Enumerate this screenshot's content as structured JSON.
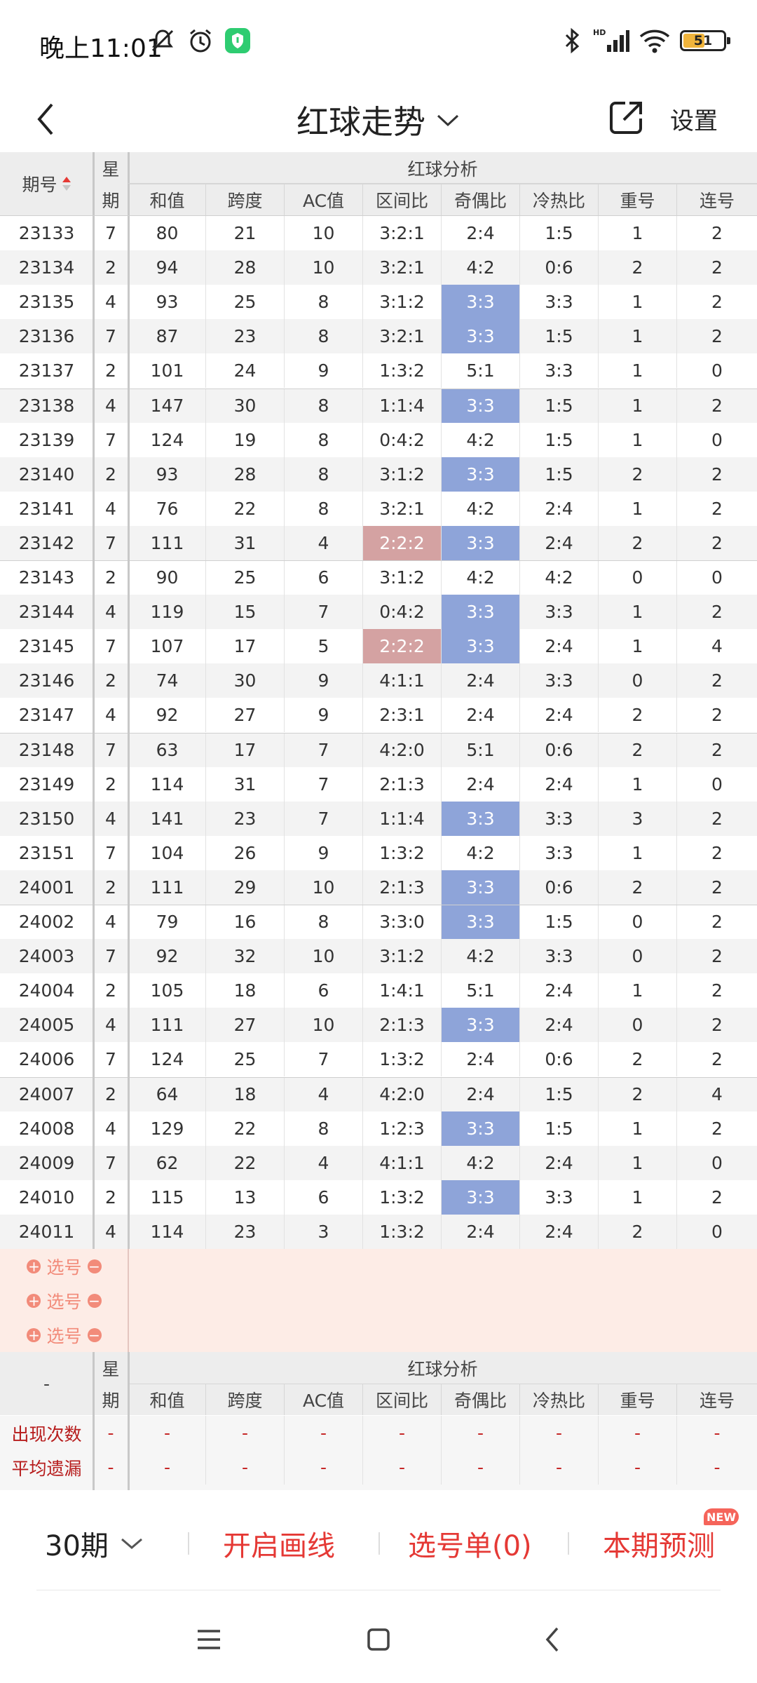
{
  "status": {
    "time": "晚上11:01",
    "battery": "51"
  },
  "nav": {
    "title": "红球走势",
    "settings": "设置"
  },
  "table": {
    "header": {
      "issue": "期号",
      "week_top": "星",
      "week_bottom": "期",
      "analysis": "红球分析",
      "cols": [
        "和值",
        "跨度",
        "AC值",
        "区间比",
        "奇偶比",
        "冷热比",
        "重号",
        "连号"
      ]
    },
    "rows": [
      {
        "issue": "23133",
        "week": "7",
        "vals": [
          "80",
          "21",
          "10",
          "3:2:1",
          "2:4",
          "1:5",
          "1",
          "2"
        ]
      },
      {
        "issue": "23134",
        "week": "2",
        "vals": [
          "94",
          "28",
          "10",
          "3:2:1",
          "4:2",
          "0:6",
          "2",
          "2"
        ]
      },
      {
        "issue": "23135",
        "week": "4",
        "vals": [
          "93",
          "25",
          "8",
          "3:1:2",
          "3:3",
          "3:3",
          "1",
          "2"
        ]
      },
      {
        "issue": "23136",
        "week": "7",
        "vals": [
          "87",
          "23",
          "8",
          "3:2:1",
          "3:3",
          "1:5",
          "1",
          "2"
        ]
      },
      {
        "issue": "23137",
        "week": "2",
        "vals": [
          "101",
          "24",
          "9",
          "1:3:2",
          "5:1",
          "3:3",
          "1",
          "0"
        ]
      },
      {
        "issue": "23138",
        "week": "4",
        "vals": [
          "147",
          "30",
          "8",
          "1:1:4",
          "3:3",
          "1:5",
          "1",
          "2"
        ]
      },
      {
        "issue": "23139",
        "week": "7",
        "vals": [
          "124",
          "19",
          "8",
          "0:4:2",
          "4:2",
          "1:5",
          "1",
          "0"
        ]
      },
      {
        "issue": "23140",
        "week": "2",
        "vals": [
          "93",
          "28",
          "8",
          "3:1:2",
          "3:3",
          "1:5",
          "2",
          "2"
        ]
      },
      {
        "issue": "23141",
        "week": "4",
        "vals": [
          "76",
          "22",
          "8",
          "3:2:1",
          "4:2",
          "2:4",
          "1",
          "2"
        ]
      },
      {
        "issue": "23142",
        "week": "7",
        "vals": [
          "111",
          "31",
          "4",
          "2:2:2",
          "3:3",
          "2:4",
          "2",
          "2"
        ]
      },
      {
        "issue": "23143",
        "week": "2",
        "vals": [
          "90",
          "25",
          "6",
          "3:1:2",
          "4:2",
          "4:2",
          "0",
          "0"
        ]
      },
      {
        "issue": "23144",
        "week": "4",
        "vals": [
          "119",
          "15",
          "7",
          "0:4:2",
          "3:3",
          "3:3",
          "1",
          "2"
        ]
      },
      {
        "issue": "23145",
        "week": "7",
        "vals": [
          "107",
          "17",
          "5",
          "2:2:2",
          "3:3",
          "2:4",
          "1",
          "4"
        ]
      },
      {
        "issue": "23146",
        "week": "2",
        "vals": [
          "74",
          "30",
          "9",
          "4:1:1",
          "2:4",
          "3:3",
          "0",
          "2"
        ]
      },
      {
        "issue": "23147",
        "week": "4",
        "vals": [
          "92",
          "27",
          "9",
          "2:3:1",
          "2:4",
          "2:4",
          "2",
          "2"
        ]
      },
      {
        "issue": "23148",
        "week": "7",
        "vals": [
          "63",
          "17",
          "7",
          "4:2:0",
          "5:1",
          "0:6",
          "2",
          "2"
        ]
      },
      {
        "issue": "23149",
        "week": "2",
        "vals": [
          "114",
          "31",
          "7",
          "2:1:3",
          "2:4",
          "2:4",
          "1",
          "0"
        ]
      },
      {
        "issue": "23150",
        "week": "4",
        "vals": [
          "141",
          "23",
          "7",
          "1:1:4",
          "3:3",
          "3:3",
          "3",
          "2"
        ]
      },
      {
        "issue": "23151",
        "week": "7",
        "vals": [
          "104",
          "26",
          "9",
          "1:3:2",
          "4:2",
          "3:3",
          "1",
          "2"
        ]
      },
      {
        "issue": "24001",
        "week": "2",
        "vals": [
          "111",
          "29",
          "10",
          "2:1:3",
          "3:3",
          "0:6",
          "2",
          "2"
        ]
      },
      {
        "issue": "24002",
        "week": "4",
        "vals": [
          "79",
          "16",
          "8",
          "3:3:0",
          "3:3",
          "1:5",
          "0",
          "2"
        ]
      },
      {
        "issue": "24003",
        "week": "7",
        "vals": [
          "92",
          "32",
          "10",
          "3:1:2",
          "4:2",
          "3:3",
          "0",
          "2"
        ]
      },
      {
        "issue": "24004",
        "week": "2",
        "vals": [
          "105",
          "18",
          "6",
          "1:4:1",
          "5:1",
          "2:4",
          "1",
          "2"
        ]
      },
      {
        "issue": "24005",
        "week": "4",
        "vals": [
          "111",
          "27",
          "10",
          "2:1:3",
          "3:3",
          "2:4",
          "0",
          "2"
        ]
      },
      {
        "issue": "24006",
        "week": "7",
        "vals": [
          "124",
          "25",
          "7",
          "1:3:2",
          "2:4",
          "0:6",
          "2",
          "2"
        ]
      },
      {
        "issue": "24007",
        "week": "2",
        "vals": [
          "64",
          "18",
          "4",
          "4:2:0",
          "2:4",
          "1:5",
          "2",
          "4"
        ]
      },
      {
        "issue": "24008",
        "week": "4",
        "vals": [
          "129",
          "22",
          "8",
          "1:2:3",
          "3:3",
          "1:5",
          "1",
          "2"
        ]
      },
      {
        "issue": "24009",
        "week": "7",
        "vals": [
          "62",
          "22",
          "4",
          "4:1:1",
          "4:2",
          "2:4",
          "1",
          "0"
        ]
      },
      {
        "issue": "24010",
        "week": "2",
        "vals": [
          "115",
          "13",
          "6",
          "1:3:2",
          "3:3",
          "3:3",
          "1",
          "2"
        ]
      },
      {
        "issue": "24011",
        "week": "4",
        "vals": [
          "114",
          "23",
          "3",
          "1:3:2",
          "2:4",
          "2:4",
          "2",
          "0"
        ]
      }
    ],
    "pick_label": "选号",
    "pick_count": 3,
    "footer_header_issue": "-",
    "stats": [
      {
        "label": "出现次数",
        "dash": "-"
      },
      {
        "label": "平均遗漏",
        "dash": "-"
      }
    ]
  },
  "bottom": {
    "period": "30期",
    "draw_lines": "开启画线",
    "pick_list": "选号单(0)",
    "predict": "本期预测",
    "new_badge": "NEW"
  },
  "colors": {
    "blue": "#8ea4d9",
    "red": "#d4a2a2",
    "accent": "#e53935",
    "pick": "#f28b7a",
    "pick_bg": "#fdece6"
  }
}
